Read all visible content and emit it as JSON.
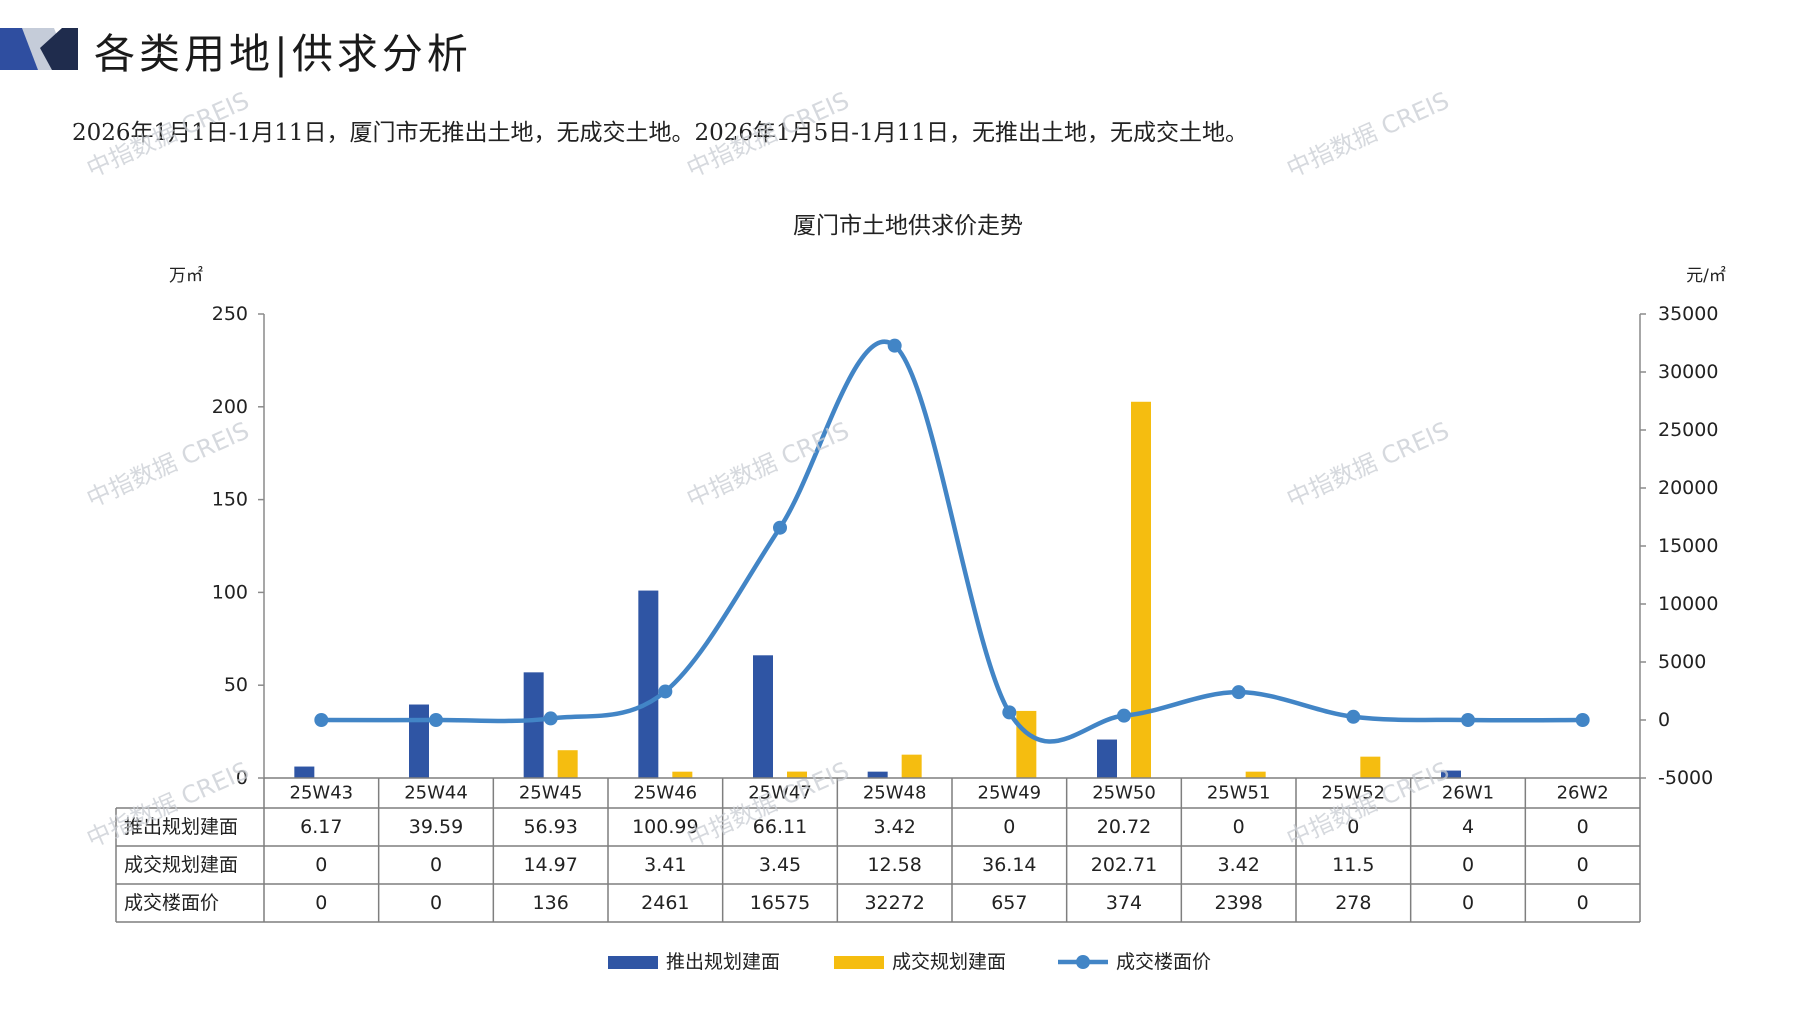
{
  "header": {
    "section_title": "各类用地|供求分析",
    "summary": "2026年1月1日-1月11日，厦门市无推出土地，无成交土地。2026年1月5日-1月11日，无推出土地，无成交土地。"
  },
  "watermark": "中指数据 CREIS",
  "colors": {
    "supply": "#2f55a4",
    "transaction": "#f5bd10",
    "price": "#4285c6",
    "header_dark": "#2f4ea0",
    "header_light": "#c5ccd9"
  },
  "chart_data": {
    "type": "bar+line",
    "title": "厦门市土地供求价走势",
    "y_left_unit": "万㎡",
    "y_right_unit": "元/㎡",
    "y_left_lim": [
      0,
      250
    ],
    "y_left_ticks": [
      "0",
      "50",
      "100",
      "150",
      "200",
      "250"
    ],
    "y_right_lim": [
      -5000,
      35000
    ],
    "y_right_ticks": [
      "-5000",
      "0",
      "5000",
      "10000",
      "15000",
      "20000",
      "25000",
      "30000",
      "35000"
    ],
    "categories": [
      "25W43",
      "25W44",
      "25W45",
      "25W46",
      "25W47",
      "25W48",
      "25W49",
      "25W50",
      "25W51",
      "25W52",
      "26W1",
      "26W2"
    ],
    "series": [
      {
        "name": "推出规划建面",
        "type": "bar",
        "axis": "left",
        "values": [
          6.17,
          39.59,
          56.93,
          100.99,
          66.11,
          3.42,
          0,
          20.72,
          0,
          0,
          4,
          0
        ],
        "labels": [
          "6.17",
          "39.59",
          "56.93",
          "100.99",
          "66.11",
          "3.42",
          "0",
          "20.72",
          "0",
          "0",
          "4",
          "0"
        ]
      },
      {
        "name": "成交规划建面",
        "type": "bar",
        "axis": "left",
        "values": [
          0,
          0,
          14.97,
          3.41,
          3.45,
          12.58,
          36.14,
          202.71,
          3.42,
          11.5,
          0,
          0
        ],
        "labels": [
          "0",
          "0",
          "14.97",
          "3.41",
          "3.45",
          "12.58",
          "36.14",
          "202.71",
          "3.42",
          "11.5",
          "0",
          "0"
        ]
      },
      {
        "name": "成交楼面价",
        "type": "line",
        "axis": "right",
        "values": [
          0,
          0,
          136,
          2461,
          16575,
          32272,
          657,
          374,
          2398,
          278,
          0,
          0
        ],
        "labels": [
          "0",
          "0",
          "136",
          "2461",
          "16575",
          "32272",
          "657",
          "374",
          "2398",
          "278",
          "0",
          "0"
        ]
      }
    ],
    "legend_position": "bottom"
  }
}
